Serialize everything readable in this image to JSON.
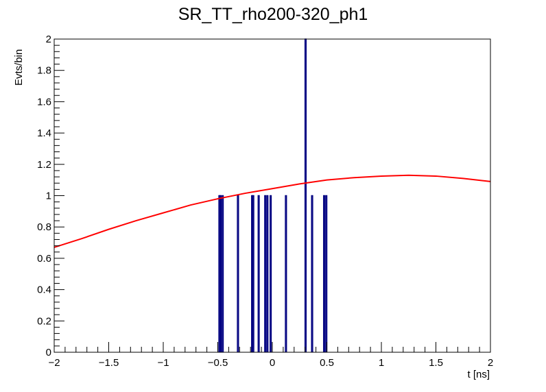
{
  "chart_data": {
    "type": "bar",
    "subtype": "histogram_with_fit",
    "title": "SR_TT_rho200-320_ph1",
    "xlabel": "t [ns]",
    "ylabel": "Evts/bin",
    "xlim": [
      -2,
      2
    ],
    "ylim": [
      0,
      2
    ],
    "bin_width": 0.01,
    "x_major_ticks": [
      -2,
      -1.5,
      -1,
      -0.5,
      0,
      0.5,
      1,
      1.5,
      2
    ],
    "x_tick_labels": [
      "−2",
      "−1.5",
      "−1",
      "−0.5",
      "0",
      "0.5",
      "1",
      "1.5",
      "2"
    ],
    "y_major_ticks": [
      0,
      0.2,
      0.4,
      0.6,
      0.8,
      1,
      1.2,
      1.4,
      1.6,
      1.8,
      2
    ],
    "y_tick_labels": [
      "0",
      "0.2",
      "0.4",
      "0.6",
      "0.8",
      "1",
      "1.2",
      "1.4",
      "1.6",
      "1.8",
      "2"
    ],
    "grid": false,
    "histogram": {
      "color": "#000080",
      "bins": [
        {
          "x": -0.49,
          "count": 1
        },
        {
          "x": -0.48,
          "count": 1
        },
        {
          "x": -0.46,
          "count": 1
        },
        {
          "x": -0.32,
          "count": 1
        },
        {
          "x": -0.19,
          "count": 1
        },
        {
          "x": -0.18,
          "count": 1
        },
        {
          "x": -0.13,
          "count": 1
        },
        {
          "x": -0.07,
          "count": 1
        },
        {
          "x": -0.05,
          "count": 1
        },
        {
          "x": -0.02,
          "count": 1
        },
        {
          "x": 0.12,
          "count": 1
        },
        {
          "x": 0.3,
          "count": 2
        },
        {
          "x": 0.36,
          "count": 1
        },
        {
          "x": 0.47,
          "count": 1
        },
        {
          "x": 0.49,
          "count": 1
        }
      ]
    },
    "fit_curve": {
      "color": "#ff0000",
      "x": [
        -2,
        -1.75,
        -1.5,
        -1.25,
        -1,
        -0.75,
        -0.5,
        -0.25,
        0,
        0.25,
        0.5,
        0.75,
        1,
        1.25,
        1.5,
        1.75,
        2
      ],
      "y": [
        0.67,
        0.725,
        0.785,
        0.84,
        0.89,
        0.94,
        0.98,
        1.015,
        1.045,
        1.075,
        1.1,
        1.115,
        1.125,
        1.13,
        1.125,
        1.11,
        1.09
      ]
    }
  }
}
